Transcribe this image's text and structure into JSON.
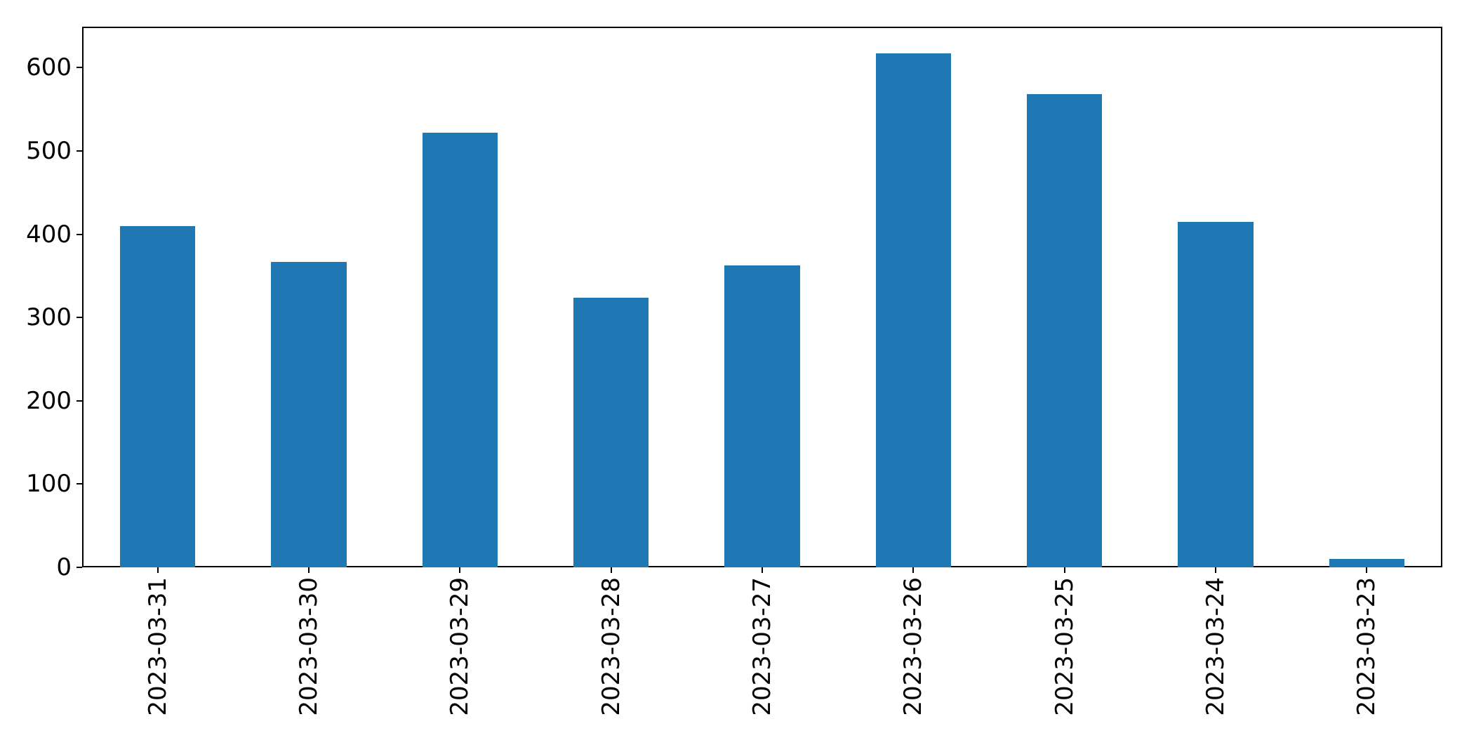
{
  "figure": {
    "background_color": "#ffffff",
    "text_color": "#000000"
  },
  "chart_data": {
    "type": "bar",
    "title": "",
    "xlabel": "",
    "ylabel": "",
    "categories": [
      "2023-03-31",
      "2023-03-30",
      "2023-03-29",
      "2023-03-28",
      "2023-03-27",
      "2023-03-26",
      "2023-03-25",
      "2023-03-24",
      "2023-03-23"
    ],
    "values": [
      410,
      367,
      522,
      324,
      363,
      617,
      568,
      415,
      10
    ],
    "bar_color": "#1f77b4",
    "bar_width_fraction": 0.5,
    "yticks": [
      0,
      100,
      200,
      300,
      400,
      500,
      600
    ],
    "ylim": [
      0,
      649.3
    ],
    "grid": false,
    "legend": "none",
    "x_tick_rotation_deg": 90
  }
}
